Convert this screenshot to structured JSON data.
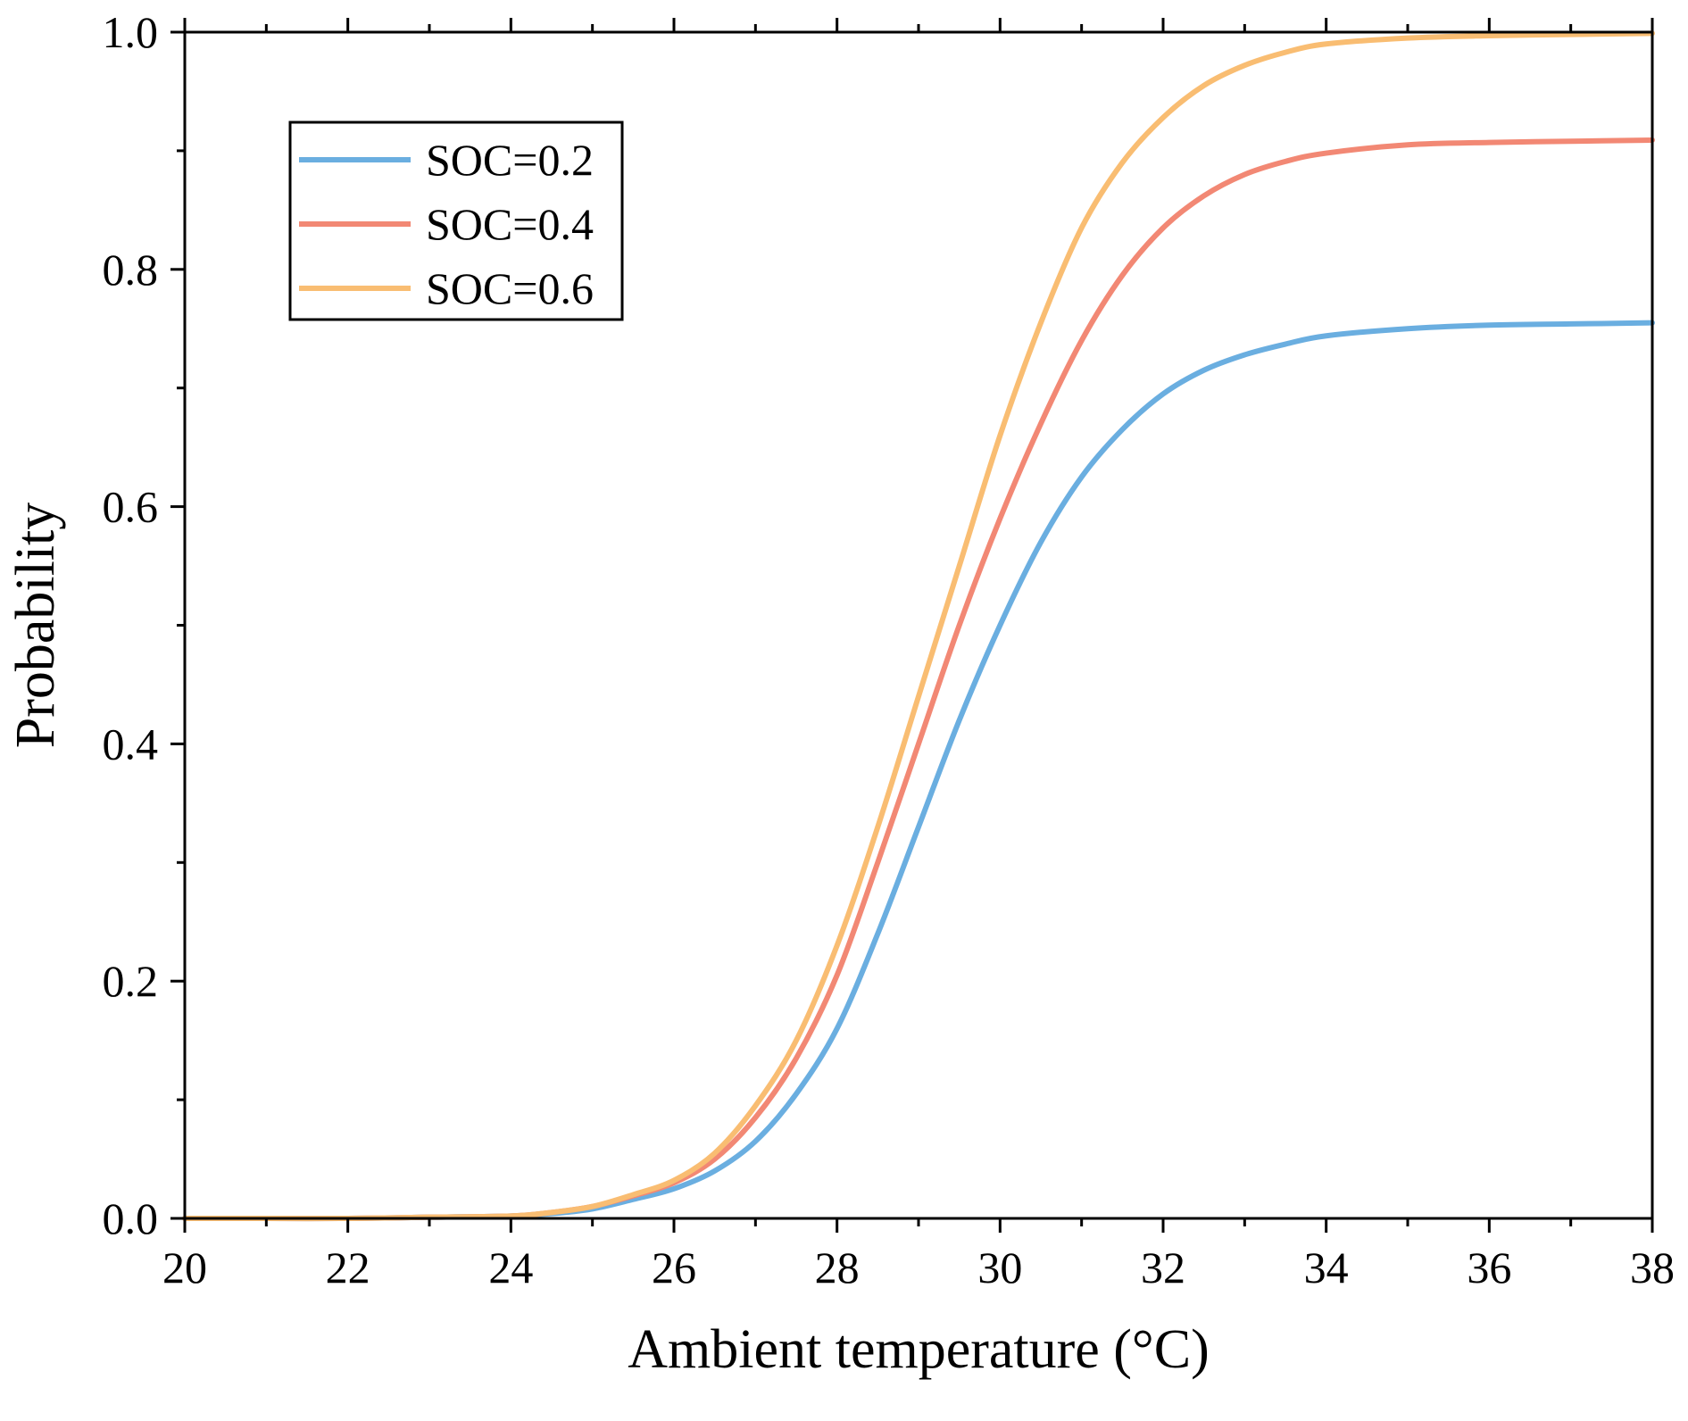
{
  "chart_data": {
    "type": "line",
    "title": "",
    "xlabel": "Ambient temperature (°C)",
    "ylabel": "Probability",
    "xlim": [
      20,
      38
    ],
    "ylim": [
      0,
      1.0
    ],
    "x_ticks": [
      20,
      22,
      24,
      26,
      28,
      30,
      32,
      34,
      36,
      38
    ],
    "x_tick_labels": [
      "20",
      "22",
      "24",
      "26",
      "28",
      "30",
      "32",
      "34",
      "36",
      "38"
    ],
    "y_ticks": [
      0,
      0.2,
      0.4,
      0.6,
      0.8,
      1.0
    ],
    "y_tick_labels": [
      "0.0",
      "0.2",
      "0.4",
      "0.6",
      "0.8",
      "1.0"
    ],
    "grid": false,
    "legend_position": "top-left",
    "x": [
      20,
      21,
      22,
      23,
      24,
      24.5,
      25,
      25.5,
      26,
      26.5,
      27,
      27.5,
      28,
      28.5,
      29,
      29.5,
      30,
      30.5,
      31,
      31.5,
      32,
      32.5,
      33,
      33.5,
      34,
      35,
      36,
      37,
      38
    ],
    "series": [
      {
        "name": "SOC=0.2",
        "color": "#6aaee0",
        "values": [
          0,
          0,
          0,
          0.001,
          0.002,
          0.004,
          0.008,
          0.016,
          0.025,
          0.04,
          0.065,
          0.105,
          0.16,
          0.24,
          0.33,
          0.42,
          0.5,
          0.57,
          0.625,
          0.665,
          0.695,
          0.715,
          0.728,
          0.737,
          0.744,
          0.75,
          0.753,
          0.754,
          0.755
        ]
      },
      {
        "name": "SOC=0.4",
        "color": "#f28874",
        "values": [
          0,
          0,
          0,
          0.001,
          0.002,
          0.005,
          0.01,
          0.019,
          0.03,
          0.05,
          0.085,
          0.135,
          0.205,
          0.3,
          0.4,
          0.5,
          0.59,
          0.67,
          0.74,
          0.795,
          0.835,
          0.862,
          0.88,
          0.891,
          0.898,
          0.905,
          0.907,
          0.908,
          0.909
        ]
      },
      {
        "name": "SOC=0.6",
        "color": "#f9bd72",
        "values": [
          0,
          0,
          0,
          0.001,
          0.002,
          0.005,
          0.01,
          0.02,
          0.032,
          0.055,
          0.095,
          0.15,
          0.23,
          0.33,
          0.44,
          0.55,
          0.66,
          0.755,
          0.835,
          0.89,
          0.928,
          0.955,
          0.972,
          0.983,
          0.99,
          0.995,
          0.997,
          0.998,
          0.999
        ]
      }
    ]
  }
}
